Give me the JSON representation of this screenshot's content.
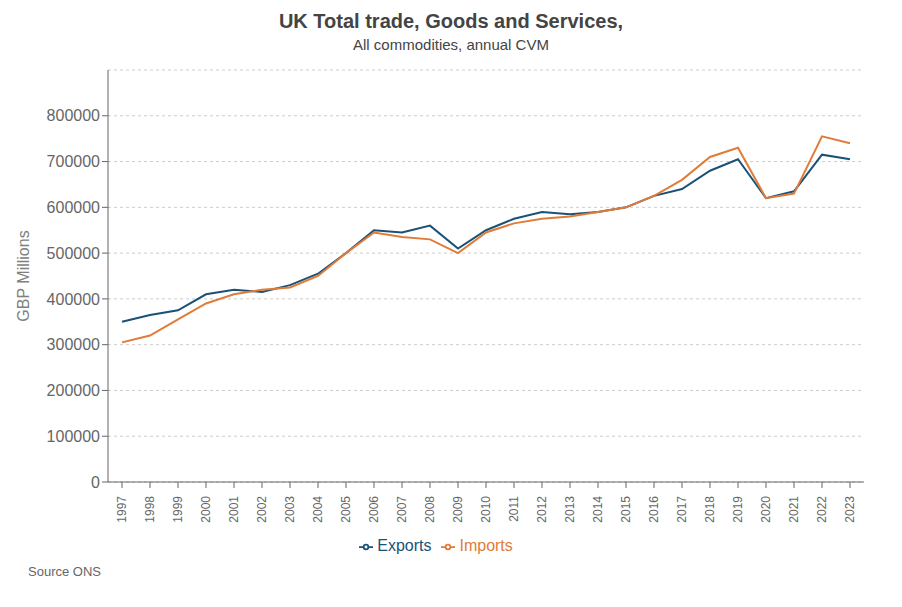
{
  "chart_data": {
    "type": "line",
    "title": "UK Total trade, Goods and Services,",
    "subtitle": "All commodities, annual CVM",
    "y_label": "GBP Millions",
    "source": "Source ONS",
    "x": [
      1997,
      1998,
      1999,
      2000,
      2001,
      2002,
      2003,
      2004,
      2005,
      2006,
      2007,
      2008,
      2009,
      2010,
      2011,
      2012,
      2013,
      2014,
      2015,
      2016,
      2017,
      2018,
      2019,
      2020,
      2021,
      2022,
      2023
    ],
    "series": [
      {
        "name": "Exports",
        "color": "#1a5276",
        "values": [
          350000,
          365000,
          375000,
          410000,
          420000,
          415000,
          430000,
          455000,
          500000,
          550000,
          545000,
          560000,
          510000,
          550000,
          575000,
          590000,
          585000,
          590000,
          600000,
          625000,
          640000,
          680000,
          705000,
          620000,
          635000,
          715000,
          705000
        ]
      },
      {
        "name": "Imports",
        "color": "#e07b39",
        "values": [
          305000,
          320000,
          355000,
          390000,
          410000,
          420000,
          425000,
          450000,
          500000,
          545000,
          535000,
          530000,
          500000,
          545000,
          565000,
          575000,
          580000,
          590000,
          600000,
          625000,
          660000,
          710000,
          730000,
          620000,
          630000,
          755000,
          740000
        ]
      }
    ],
    "xlim": [
      1996.5,
      2023.5
    ],
    "xticks": [
      1997,
      1998,
      1999,
      2000,
      2001,
      2002,
      2003,
      2004,
      2005,
      2006,
      2007,
      2008,
      2009,
      2010,
      2011,
      2012,
      2013,
      2014,
      2015,
      2016,
      2017,
      2018,
      2019,
      2020,
      2021,
      2022,
      2023
    ],
    "ylim": [
      0,
      900000
    ],
    "yticks": [
      0,
      100000,
      200000,
      300000,
      400000,
      500000,
      600000,
      700000,
      800000
    ],
    "grid": true,
    "legend": "bottom"
  }
}
